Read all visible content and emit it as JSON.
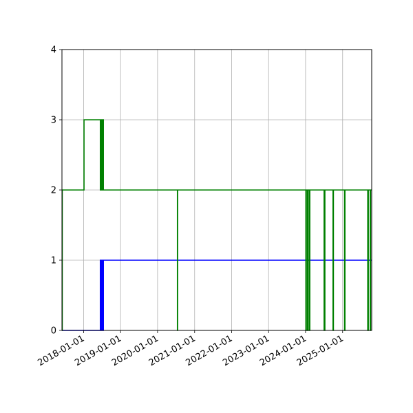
{
  "chart_data": {
    "type": "line",
    "title": "",
    "xlabel": "",
    "ylabel": "",
    "xlim": [
      "2017-06-01",
      "2025-10-15"
    ],
    "ylim": [
      0,
      4
    ],
    "grid": true,
    "legend": "none",
    "x_ticks": [
      "2018-01-01",
      "2019-01-01",
      "2020-01-01",
      "2021-01-01",
      "2022-01-01",
      "2023-01-01",
      "2024-01-01",
      "2025-01-01"
    ],
    "y_ticks": [
      0,
      1,
      2,
      3,
      4
    ],
    "series": [
      {
        "color": "#0000ff",
        "points": [
          [
            "2017-06-01",
            0
          ],
          [
            "2018-06-15",
            0
          ],
          [
            "2018-06-15",
            1
          ],
          [
            "2018-06-18",
            1
          ],
          [
            "2018-06-18",
            0
          ],
          [
            "2018-06-21",
            0
          ],
          [
            "2018-06-21",
            1
          ],
          [
            "2018-06-24",
            1
          ],
          [
            "2018-06-24",
            0
          ],
          [
            "2018-06-27",
            0
          ],
          [
            "2018-06-27",
            1
          ],
          [
            "2018-06-30",
            1
          ],
          [
            "2018-06-30",
            0
          ],
          [
            "2018-07-03",
            0
          ],
          [
            "2018-07-03",
            1
          ],
          [
            "2018-07-06",
            1
          ],
          [
            "2018-07-06",
            0
          ],
          [
            "2018-07-09",
            0
          ],
          [
            "2018-07-09",
            1
          ],
          [
            "2018-07-12",
            1
          ],
          [
            "2018-07-12",
            0
          ],
          [
            "2018-07-15",
            0
          ],
          [
            "2018-07-15",
            1
          ],
          [
            "2025-10-15",
            1
          ]
        ]
      },
      {
        "color": "#008000",
        "points": [
          [
            "2017-06-01",
            0
          ],
          [
            "2017-06-04",
            0
          ],
          [
            "2017-06-04",
            2
          ],
          [
            "2018-01-05",
            2
          ],
          [
            "2018-01-05",
            3
          ],
          [
            "2018-06-15",
            3
          ],
          [
            "2018-06-15",
            2
          ],
          [
            "2018-06-20",
            2
          ],
          [
            "2018-06-20",
            3
          ],
          [
            "2018-06-25",
            3
          ],
          [
            "2018-06-25",
            2
          ],
          [
            "2018-06-30",
            2
          ],
          [
            "2018-06-30",
            3
          ],
          [
            "2018-07-05",
            3
          ],
          [
            "2018-07-05",
            2
          ],
          [
            "2018-07-10",
            2
          ],
          [
            "2018-07-10",
            3
          ],
          [
            "2018-07-15",
            3
          ],
          [
            "2018-07-15",
            2
          ],
          [
            "2020-07-15",
            2
          ],
          [
            "2020-07-15",
            0
          ],
          [
            "2020-07-17",
            0
          ],
          [
            "2020-07-17",
            2
          ],
          [
            "2024-01-04",
            2
          ],
          [
            "2024-01-04",
            0
          ],
          [
            "2024-01-08",
            0
          ],
          [
            "2024-01-08",
            2
          ],
          [
            "2024-01-20",
            2
          ],
          [
            "2024-01-20",
            0
          ],
          [
            "2024-01-26",
            0
          ],
          [
            "2024-01-26",
            2
          ],
          [
            "2024-02-08",
            2
          ],
          [
            "2024-02-08",
            0
          ],
          [
            "2024-02-12",
            0
          ],
          [
            "2024-02-12",
            2
          ],
          [
            "2024-07-02",
            2
          ],
          [
            "2024-07-02",
            0
          ],
          [
            "2024-07-10",
            0
          ],
          [
            "2024-07-10",
            2
          ],
          [
            "2024-09-28",
            2
          ],
          [
            "2024-09-28",
            0
          ],
          [
            "2024-10-02",
            0
          ],
          [
            "2024-10-02",
            2
          ],
          [
            "2025-01-20",
            2
          ],
          [
            "2025-01-20",
            0
          ],
          [
            "2025-01-24",
            0
          ],
          [
            "2025-01-24",
            2
          ],
          [
            "2025-09-06",
            2
          ],
          [
            "2025-09-06",
            0
          ],
          [
            "2025-09-12",
            0
          ],
          [
            "2025-09-12",
            2
          ],
          [
            "2025-09-30",
            2
          ],
          [
            "2025-09-30",
            0
          ],
          [
            "2025-10-04",
            0
          ],
          [
            "2025-10-04",
            2
          ],
          [
            "2025-10-15",
            2
          ]
        ]
      }
    ]
  }
}
